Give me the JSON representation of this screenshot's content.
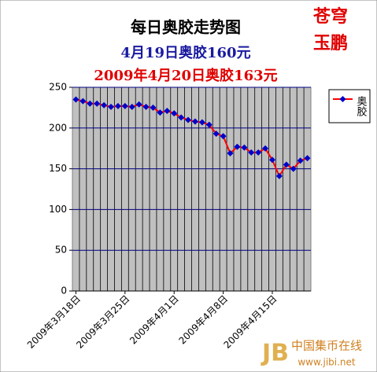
{
  "chart_data": {
    "type": "line",
    "title": "每日奥胶走势图",
    "subtitle": "4月19日奥胶160元",
    "subtitle2": "2009年4月20日奥胶163元",
    "watermark": [
      "苍穹",
      "玉鹏"
    ],
    "logo": [
      "中国集币在线",
      "www.jibi.net"
    ],
    "categories": [
      "2009年3月18日",
      null,
      null,
      null,
      null,
      null,
      null,
      "2009年3月25日",
      null,
      null,
      null,
      null,
      null,
      null,
      "2009年4月1日",
      null,
      null,
      null,
      null,
      null,
      null,
      "2009年4月8日",
      null,
      null,
      null,
      null,
      null,
      null,
      "2009年4月15日",
      null,
      null,
      null,
      null,
      null
    ],
    "series": [
      {
        "name": "奥胶",
        "color": "#ff0000",
        "marker_color": "#0000cc",
        "values": [
          235,
          233,
          230,
          230,
          228,
          226,
          227,
          227,
          226,
          229,
          226,
          225,
          219,
          221,
          218,
          213,
          210,
          208,
          207,
          204,
          193,
          190,
          169,
          177,
          176,
          170,
          170,
          175,
          161,
          141,
          155,
          150,
          160,
          163
        ]
      }
    ],
    "ylim": [
      0,
      250
    ],
    "yticks": [
      0,
      50,
      100,
      150,
      200,
      250
    ],
    "grid": true,
    "legend": "right"
  }
}
